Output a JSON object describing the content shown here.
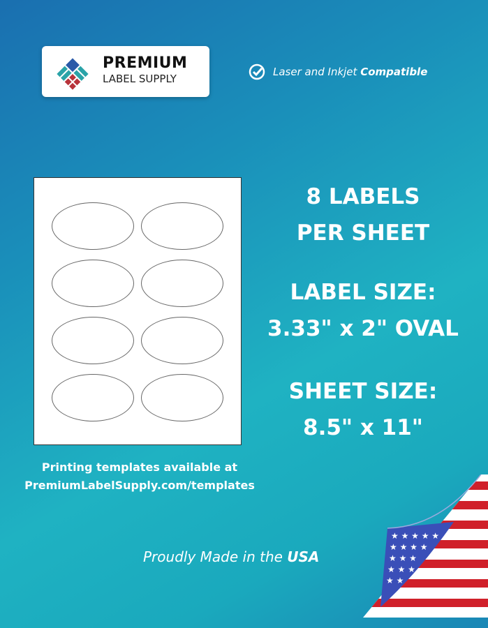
{
  "logo": {
    "line1": "PREMIUM",
    "line2": "LABEL SUPPLY"
  },
  "compat": {
    "icon": "check-circle-icon",
    "text_regular": "Laser and Inkjet",
    "text_bold": "Compatible"
  },
  "sheet": {
    "label_count": 8,
    "shape": "oval"
  },
  "headline": {
    "line1": "8 LABELS",
    "line2": "PER SHEET",
    "line3": "LABEL SIZE:",
    "line4": "3.33\" x 2\" OVAL",
    "line5": "SHEET SIZE:",
    "line6": "8.5\" x 11\""
  },
  "templates": {
    "line1": "Printing templates available at",
    "line2": "PremiumLabelSupply.com/templates"
  },
  "footer": {
    "text_regular": "Proudly Made in the",
    "text_bold": "USA",
    "flag_icon": "us-flag-icon"
  },
  "colors": {
    "logo_blue": "#2a5aa8",
    "logo_teal": "#2aa3a8",
    "logo_red": "#b8333a",
    "flag_red": "#d0202a"
  }
}
